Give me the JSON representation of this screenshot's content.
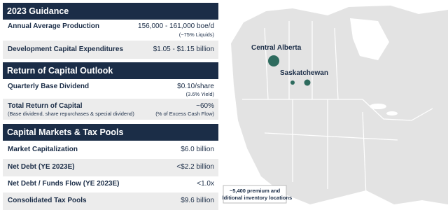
{
  "sections": [
    {
      "title": "2023 Guidance",
      "rows": [
        {
          "label": "Annual Average Production",
          "value": "156,000 - 161,000 boe/d",
          "value_note": "(~75% Liquids)"
        },
        {
          "label": "Development Capital Expenditures",
          "value": "$1.05 - $1.15 billion"
        }
      ]
    },
    {
      "title": "Return of Capital Outlook",
      "rows": [
        {
          "label": "Quarterly Base Dividend",
          "value": "$0.10/share",
          "value_note": "(3.6% Yield)"
        },
        {
          "label": "Total Return of Capital",
          "label_note": "(Base dividend, share repurchases & special dividend)",
          "value": "~60%",
          "value_note": "(% of Excess Cash Flow)"
        }
      ]
    },
    {
      "title": "Capital Markets & Tax Pools",
      "rows": [
        {
          "label": "Market Capitalization",
          "value": "$6.0 billion"
        },
        {
          "label": "Net Debt (YE 2023E)",
          "value": "<$2.2 billion"
        },
        {
          "label": "Net Debt / Funds Flow (YE 2023E)",
          "value": "<1.0x"
        },
        {
          "label": "Consolidated Tax Pools",
          "value": "$9.6 billion"
        }
      ]
    }
  ],
  "map": {
    "labels": [
      "Central Alberta",
      "Saskatchewan"
    ],
    "note": [
      "~5,400 premium and",
      "additional inventory locations"
    ]
  }
}
